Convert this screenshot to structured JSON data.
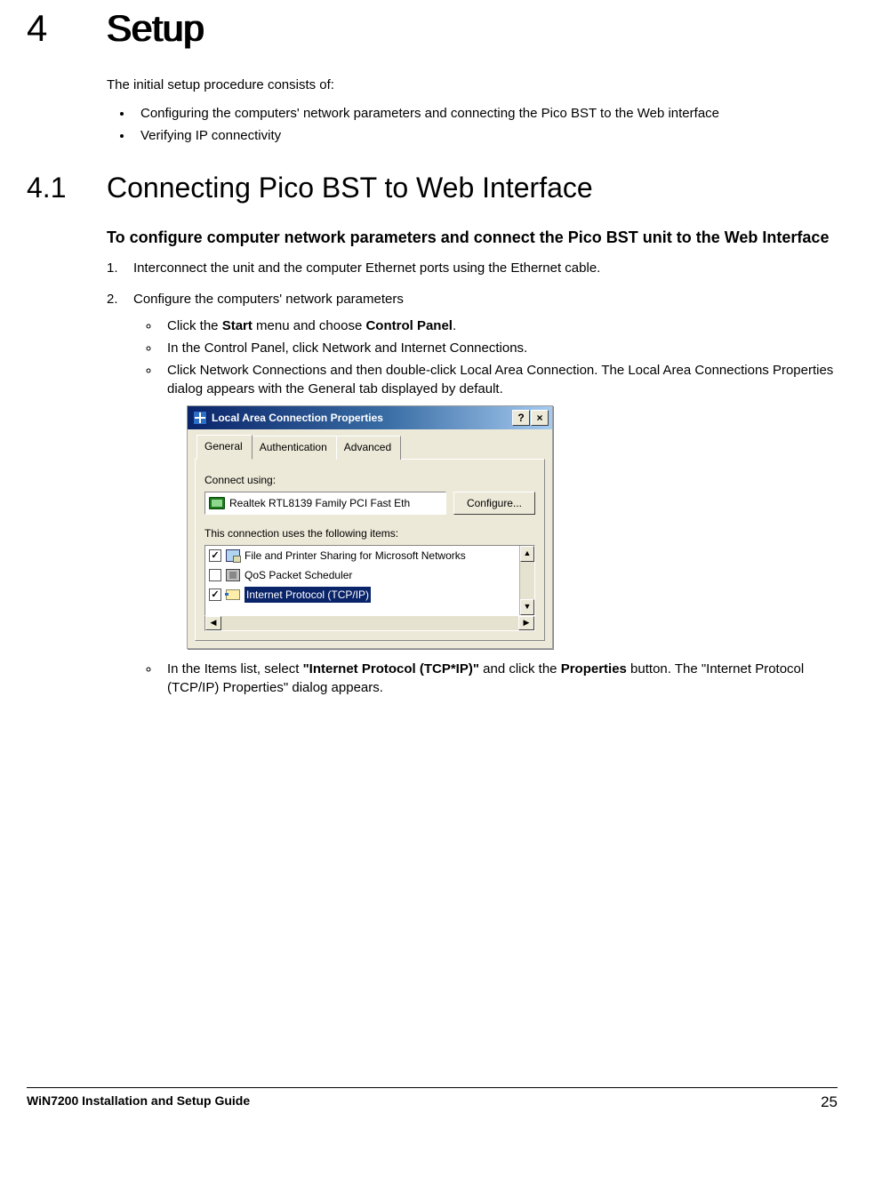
{
  "chapter": {
    "number": "4",
    "title": "Setup"
  },
  "intro": {
    "lead": "The initial setup procedure consists of:",
    "bullets": [
      "Configuring the computers' network parameters and connecting the Pico BST to the Web interface",
      "Verifying IP connectivity"
    ]
  },
  "section": {
    "number": "4.1",
    "title": "Connecting Pico BST to Web Interface"
  },
  "subhead": "To configure computer network parameters and connect the Pico BST unit to the Web Interface",
  "steps": {
    "s1": "Interconnect the unit and the computer Ethernet ports using the Ethernet cable.",
    "s2": "Configure the computers' network parameters",
    "s2_bullets": {
      "b1_pre": "Click the ",
      "b1_bold1": "Start",
      "b1_mid": " menu and choose ",
      "b1_bold2": "Control Panel",
      "b1_post": ".",
      "b2": "In the Control Panel, click Network and Internet Connections.",
      "b3": "Click Network Connections and then double-click Local Area Connection. The Local Area Connections Properties dialog appears with the General tab displayed by default.",
      "b4_pre": "In the Items list, select ",
      "b4_bold1": "\"Internet Protocol (TCP*IP)\"",
      "b4_mid": " and click the ",
      "b4_bold2": "Properties",
      "b4_post": " button. The \"Internet Protocol (TCP/IP) Properties\" dialog appears."
    }
  },
  "dialog": {
    "title": "Local Area Connection Properties",
    "help_btn": "?",
    "close_btn": "×",
    "tabs": {
      "general": "General",
      "auth": "Authentication",
      "adv": "Advanced"
    },
    "connect_using": "Connect using:",
    "adapter": "Realtek RTL8139 Family PCI Fast Eth",
    "configure_btn": "Configure...",
    "uses_items": "This connection uses the following items:",
    "items": {
      "fps": {
        "checked": true,
        "label": "File and Printer Sharing for Microsoft Networks"
      },
      "qos": {
        "checked": false,
        "label": "QoS Packet Scheduler"
      },
      "tcp": {
        "checked": true,
        "label": "Internet Protocol (TCP/IP)"
      }
    },
    "arrows": {
      "up": "▲",
      "down": "▼",
      "left": "◀",
      "right": "▶"
    }
  },
  "footer": {
    "guide": "WiN7200 Installation and Setup Guide",
    "page": "25"
  }
}
